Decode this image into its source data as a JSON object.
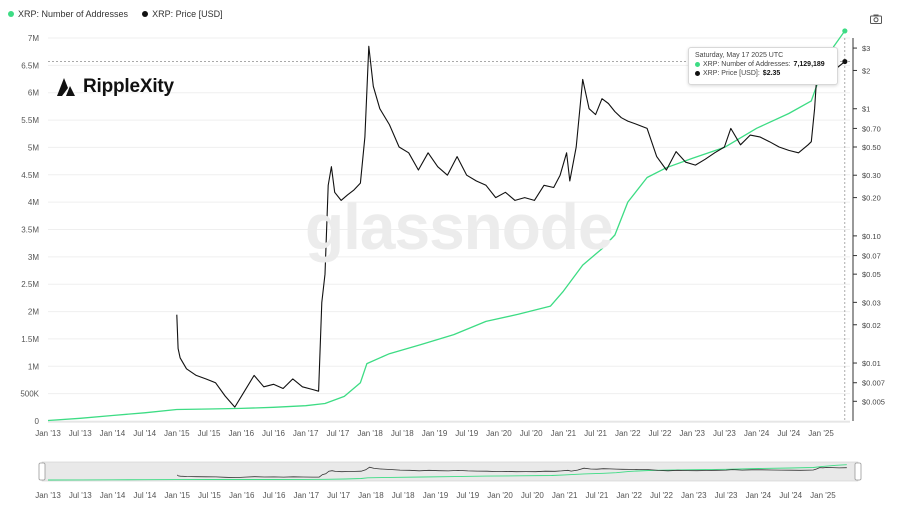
{
  "legend": {
    "items": [
      {
        "label": "XRP: Number of Addresses",
        "color": "#3ddc84"
      },
      {
        "label": "XRP: Price [USD]",
        "color": "#111111"
      }
    ]
  },
  "brand": {
    "logo_text": "RippleXity",
    "watermark": "glassnode"
  },
  "tooltip": {
    "date": "Saturday, May 17 2025 UTC",
    "addresses_label": "XRP: Number of Addresses:",
    "addresses_value": "7,129,189",
    "price_label": "XRP: Price [USD]:",
    "price_value": "$2.35"
  },
  "icons": {
    "camera": "camera-icon"
  },
  "chart_data": {
    "type": "line",
    "title": "",
    "x_ticks": [
      "Jan '13",
      "Jul '13",
      "Jan '14",
      "Jul '14",
      "Jan '15",
      "Jul '15",
      "Jan '16",
      "Jul '16",
      "Jan '17",
      "Jul '17",
      "Jan '18",
      "Jul '18",
      "Jan '19",
      "Jul '19",
      "Jan '20",
      "Jul '20",
      "Jan '21",
      "Jul '21",
      "Jan '22",
      "Jul '22",
      "Jan '23",
      "Jul '23",
      "Jan '24",
      "Jul '24",
      "Jan '25"
    ],
    "left_axis": {
      "ticks": [
        "0",
        "500K",
        "1M",
        "1.5M",
        "2M",
        "2.5M",
        "3M",
        "3.5M",
        "4M",
        "4.5M",
        "5M",
        "5.5M",
        "6M",
        "6.5M",
        "7M"
      ],
      "ylim": [
        0,
        7000000
      ]
    },
    "right_axis": {
      "scale": "log",
      "ticks": [
        "$0.005",
        "$0.007",
        "$0.01",
        "$0.02",
        "$0.03",
        "$0.05",
        "$0.07",
        "$0.10",
        "$0.20",
        "$0.30",
        "$0.50",
        "$0.70",
        "$1",
        "$2",
        "$3"
      ],
      "ylim": [
        0.0035,
        3.6
      ]
    },
    "grid": true,
    "legend_position": "top-left",
    "series": [
      {
        "name": "XRP: Number of Addresses",
        "color": "#3ddc84",
        "axis": "left",
        "x": [
          2013.0,
          2013.5,
          2014.0,
          2014.5,
          2015.0,
          2015.5,
          2016.0,
          2016.5,
          2017.0,
          2017.3,
          2017.6,
          2017.85,
          2017.95,
          2018.3,
          2018.8,
          2019.3,
          2019.8,
          2020.3,
          2020.8,
          2021.0,
          2021.3,
          2021.6,
          2021.8,
          2022.0,
          2022.3,
          2022.6,
          2023.0,
          2023.5,
          2024.0,
          2024.5,
          2024.85,
          2025.0,
          2025.2,
          2025.37
        ],
        "y": [
          10000,
          50000,
          100000,
          150000,
          210000,
          220000,
          230000,
          250000,
          280000,
          320000,
          450000,
          700000,
          1050000,
          1230000,
          1400000,
          1580000,
          1820000,
          1950000,
          2100000,
          2370000,
          2850000,
          3150000,
          3400000,
          4000000,
          4450000,
          4630000,
          4800000,
          5000000,
          5350000,
          5620000,
          5850000,
          6350000,
          6850000,
          7129189
        ]
      },
      {
        "name": "XRP: Price [USD]",
        "color": "#111111",
        "axis": "right",
        "x": [
          2015.0,
          2015.02,
          2015.05,
          2015.15,
          2015.3,
          2015.45,
          2015.6,
          2015.75,
          2015.9,
          2016.05,
          2016.2,
          2016.35,
          2016.5,
          2016.65,
          2016.8,
          2016.95,
          2017.1,
          2017.2,
          2017.25,
          2017.3,
          2017.35,
          2017.4,
          2017.45,
          2017.55,
          2017.65,
          2017.75,
          2017.85,
          2017.92,
          2017.98,
          2018.05,
          2018.15,
          2018.3,
          2018.45,
          2018.6,
          2018.75,
          2018.9,
          2019.05,
          2019.2,
          2019.35,
          2019.5,
          2019.65,
          2019.8,
          2019.95,
          2020.1,
          2020.25,
          2020.4,
          2020.55,
          2020.7,
          2020.85,
          2020.95,
          2021.05,
          2021.1,
          2021.2,
          2021.3,
          2021.4,
          2021.5,
          2021.6,
          2021.7,
          2021.8,
          2021.9,
          2022.0,
          2022.15,
          2022.3,
          2022.45,
          2022.6,
          2022.75,
          2022.9,
          2023.05,
          2023.2,
          2023.35,
          2023.5,
          2023.6,
          2023.75,
          2023.9,
          2024.05,
          2024.2,
          2024.35,
          2024.5,
          2024.65,
          2024.8,
          2024.85,
          2024.9,
          2024.95,
          2025.0,
          2025.05,
          2025.15,
          2025.25,
          2025.37
        ],
        "y": [
          0.024,
          0.013,
          0.011,
          0.009,
          0.008,
          0.0075,
          0.007,
          0.0055,
          0.0045,
          0.006,
          0.008,
          0.0065,
          0.0068,
          0.0063,
          0.0075,
          0.0065,
          0.0062,
          0.006,
          0.03,
          0.05,
          0.25,
          0.35,
          0.22,
          0.19,
          0.21,
          0.23,
          0.26,
          0.6,
          3.1,
          1.5,
          1.0,
          0.75,
          0.5,
          0.45,
          0.33,
          0.45,
          0.35,
          0.3,
          0.42,
          0.3,
          0.27,
          0.25,
          0.2,
          0.22,
          0.19,
          0.2,
          0.19,
          0.25,
          0.24,
          0.3,
          0.45,
          0.27,
          0.5,
          1.7,
          1.0,
          0.9,
          1.2,
          1.1,
          0.95,
          0.85,
          0.8,
          0.75,
          0.7,
          0.42,
          0.33,
          0.46,
          0.38,
          0.36,
          0.4,
          0.45,
          0.5,
          0.7,
          0.52,
          0.62,
          0.6,
          0.55,
          0.5,
          0.47,
          0.45,
          0.52,
          0.55,
          1.0,
          2.4,
          2.2,
          2.7,
          2.4,
          2.1,
          2.35
        ]
      }
    ],
    "navigator": {
      "x_ticks": [
        "Jan '13",
        "Jul '13",
        "Jan '14",
        "Jul '14",
        "Jan '15",
        "Jul '15",
        "Jan '16",
        "Jul '16",
        "Jan '17",
        "Jul '17",
        "Jan '18",
        "Jul '18",
        "Jan '19",
        "Jul '19",
        "Jan '20",
        "Jul '20",
        "Jan '21",
        "Jul '21",
        "Jan '22",
        "Jul '22",
        "Jan '23",
        "Jul '23",
        "Jan '24",
        "Jul '24",
        "Jan '25"
      ]
    }
  }
}
